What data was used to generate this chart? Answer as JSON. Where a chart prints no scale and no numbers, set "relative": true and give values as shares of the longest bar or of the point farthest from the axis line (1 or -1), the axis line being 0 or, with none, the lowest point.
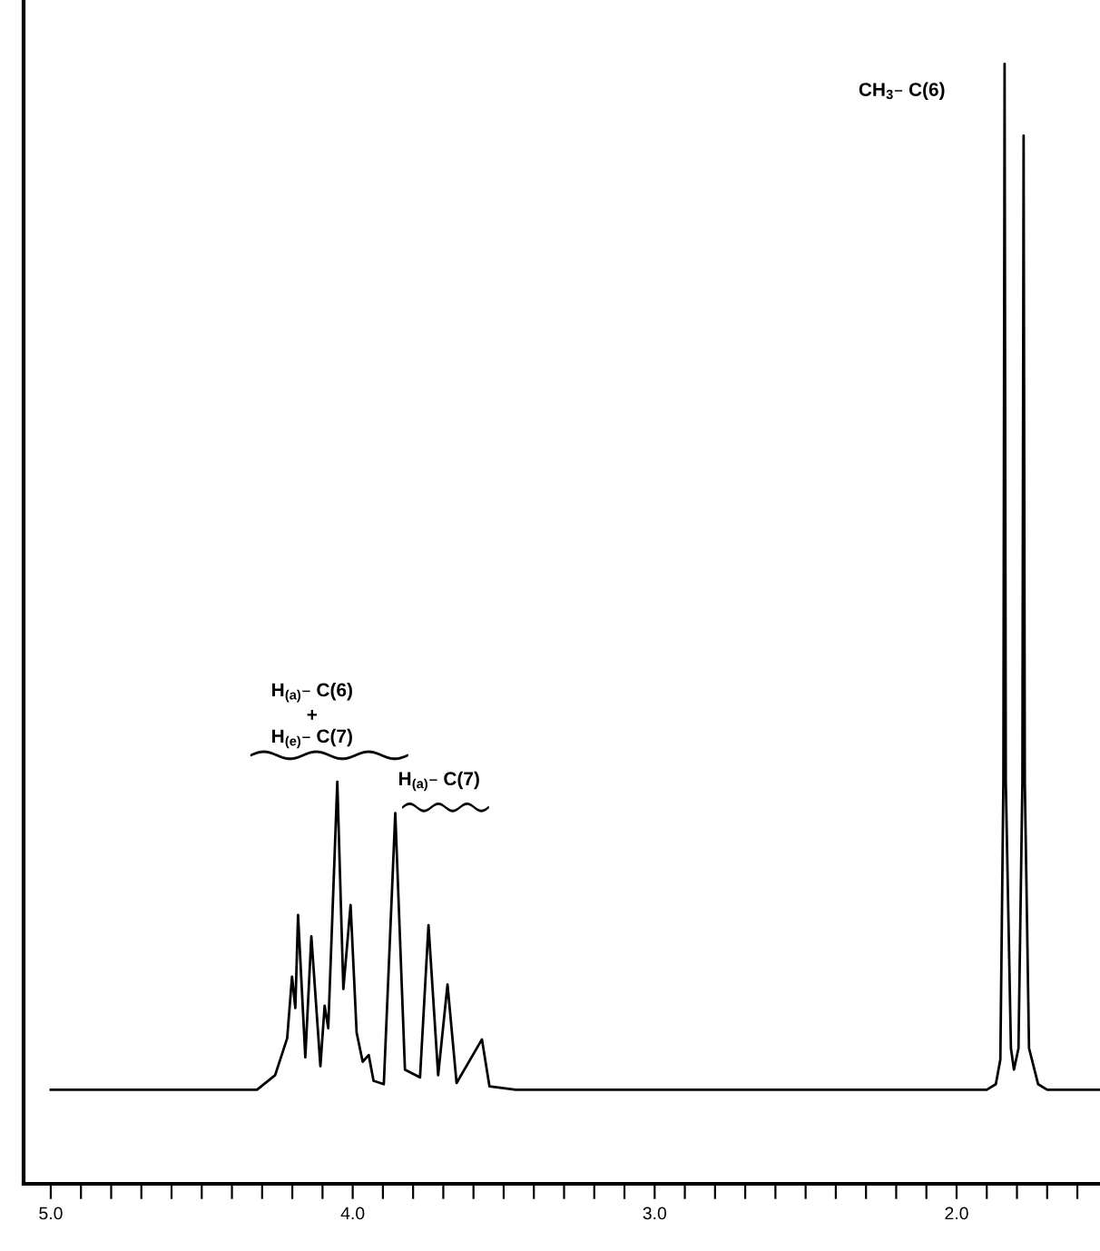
{
  "chart_data": {
    "type": "line",
    "relative": true,
    "color": "#000000",
    "line_style": "solid",
    "grid": false,
    "x": [
      5.0,
      4.317,
      4.257,
      4.217,
      4.201,
      4.19,
      4.181,
      4.157,
      4.137,
      4.107,
      4.093,
      4.081,
      4.051,
      4.031,
      4.007,
      3.987,
      3.967,
      3.947,
      3.931,
      3.897,
      3.859,
      3.827,
      3.777,
      3.749,
      3.717,
      3.686,
      3.656,
      3.572,
      3.547,
      3.46,
      1.9,
      1.87,
      1.855,
      1.845,
      1.841,
      1.837,
      1.82,
      1.81,
      1.795,
      1.782,
      1.778,
      1.774,
      1.76,
      1.73,
      1.7,
      1.525
    ],
    "values": [
      0.084,
      0.084,
      0.097,
      0.13,
      0.185,
      0.157,
      0.24,
      0.113,
      0.221,
      0.105,
      0.159,
      0.139,
      0.359,
      0.174,
      0.249,
      0.135,
      0.109,
      0.115,
      0.092,
      0.089,
      0.331,
      0.102,
      0.095,
      0.231,
      0.097,
      0.178,
      0.09,
      0.129,
      0.087,
      0.084,
      0.084,
      0.089,
      0.111,
      0.359,
      1.0,
      0.359,
      0.121,
      0.102,
      0.121,
      0.359,
      0.936,
      0.359,
      0.121,
      0.089,
      0.084,
      0.084
    ],
    "xlim": [
      5.09,
      1.525
    ],
    "xticks": [
      {
        "value": 5.0,
        "label": "5.0"
      },
      {
        "value": 4.9,
        "label": null
      },
      {
        "value": 4.8,
        "label": null
      },
      {
        "value": 4.7,
        "label": null
      },
      {
        "value": 4.6,
        "label": null
      },
      {
        "value": 4.5,
        "label": null
      },
      {
        "value": 4.4,
        "label": null
      },
      {
        "value": 4.3,
        "label": null
      },
      {
        "value": 4.2,
        "label": null
      },
      {
        "value": 4.1,
        "label": null
      },
      {
        "value": 4.0,
        "label": "4.0"
      },
      {
        "value": 3.9,
        "label": null
      },
      {
        "value": 3.8,
        "label": null
      },
      {
        "value": 3.7,
        "label": null
      },
      {
        "value": 3.6,
        "label": null
      },
      {
        "value": 3.5,
        "label": null
      },
      {
        "value": 3.4,
        "label": null
      },
      {
        "value": 3.3,
        "label": null
      },
      {
        "value": 3.2,
        "label": null
      },
      {
        "value": 3.1,
        "label": null
      },
      {
        "value": 3.0,
        "label": "3.0"
      },
      {
        "value": 2.9,
        "label": null
      },
      {
        "value": 2.8,
        "label": null
      },
      {
        "value": 2.7,
        "label": null
      },
      {
        "value": 2.6,
        "label": null
      },
      {
        "value": 2.5,
        "label": null
      },
      {
        "value": 2.4,
        "label": null
      },
      {
        "value": 2.3,
        "label": null
      },
      {
        "value": 2.2,
        "label": null
      },
      {
        "value": 2.1,
        "label": null
      },
      {
        "value": 2.0,
        "label": "2.0"
      },
      {
        "value": 1.9,
        "label": null
      },
      {
        "value": 1.8,
        "label": null
      },
      {
        "value": 1.7,
        "label": null
      },
      {
        "value": 1.6,
        "label": null
      }
    ],
    "annotations": [
      "CH$_{3}$– C(6)",
      "H$_{(a)}$– C(6)",
      "+",
      "H$_{(e)}$– C(7)",
      "H$_{(a)}$– C(7)"
    ]
  }
}
